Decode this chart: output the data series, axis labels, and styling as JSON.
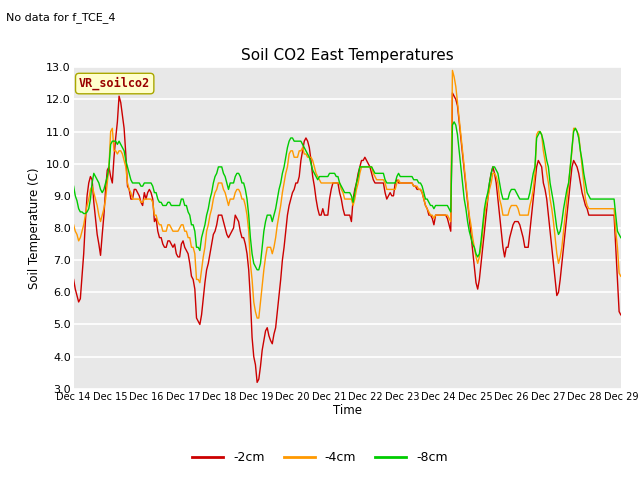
{
  "title": "Soil CO2 East Temperatures",
  "subtitle": "No data for f_TCE_4",
  "ylabel": "Soil Temperature (C)",
  "xlabel": "Time",
  "station_label": "VR_soilco2",
  "ylim": [
    3.0,
    13.0
  ],
  "yticks": [
    3.0,
    4.0,
    5.0,
    6.0,
    7.0,
    8.0,
    9.0,
    10.0,
    11.0,
    12.0,
    13.0
  ],
  "xtick_labels": [
    "Dec 14",
    "Dec 15",
    "Dec 16",
    "Dec 17",
    "Dec 18",
    "Dec 19",
    "Dec 20",
    "Dec 21",
    "Dec 22",
    "Dec 23",
    "Dec 24",
    "Dec 25",
    "Dec 26",
    "Dec 27",
    "Dec 28",
    "Dec 29"
  ],
  "colors": {
    "minus2cm": "#cc0000",
    "minus4cm": "#ff9900",
    "minus8cm": "#00cc00",
    "fig_bg": "#ffffff",
    "plot_bg": "#e8e8e8"
  },
  "legend": [
    "-2cm",
    "-4cm",
    "-8cm"
  ],
  "minus2cm": [
    6.4,
    6.1,
    5.9,
    5.7,
    5.8,
    6.5,
    7.2,
    8.2,
    9.0,
    9.4,
    9.6,
    9.5,
    8.8,
    8.3,
    7.8,
    7.5,
    7.15,
    7.8,
    8.4,
    9.2,
    9.8,
    9.9,
    9.6,
    9.4,
    10.2,
    10.8,
    11.3,
    12.1,
    11.9,
    11.5,
    11.1,
    10.3,
    9.3,
    9.2,
    8.9,
    8.9,
    9.2,
    9.2,
    9.1,
    9.0,
    8.8,
    8.7,
    9.1,
    8.9,
    9.1,
    9.2,
    9.1,
    8.9,
    8.2,
    8.3,
    7.9,
    7.7,
    7.7,
    7.5,
    7.4,
    7.4,
    7.6,
    7.6,
    7.5,
    7.4,
    7.5,
    7.2,
    7.1,
    7.1,
    7.5,
    7.6,
    7.4,
    7.3,
    7.2,
    6.9,
    6.5,
    6.4,
    6.1,
    5.2,
    5.1,
    5.0,
    5.3,
    5.8,
    6.3,
    6.7,
    6.9,
    7.2,
    7.5,
    7.8,
    7.9,
    8.1,
    8.4,
    8.4,
    8.4,
    8.2,
    8.0,
    7.8,
    7.7,
    7.8,
    7.9,
    8.0,
    8.4,
    8.3,
    8.2,
    7.9,
    7.7,
    7.7,
    7.5,
    7.2,
    6.7,
    5.8,
    4.6,
    4.0,
    3.75,
    3.2,
    3.3,
    3.7,
    4.2,
    4.5,
    4.8,
    4.9,
    4.65,
    4.5,
    4.4,
    4.7,
    4.9,
    5.4,
    5.9,
    6.4,
    7.0,
    7.4,
    7.9,
    8.4,
    8.7,
    8.9,
    9.1,
    9.2,
    9.4,
    9.4,
    9.6,
    10.1,
    10.4,
    10.7,
    10.8,
    10.7,
    10.5,
    10.1,
    9.6,
    9.3,
    8.9,
    8.6,
    8.4,
    8.4,
    8.6,
    8.4,
    8.4,
    8.4,
    8.9,
    9.2,
    9.4,
    9.4,
    9.4,
    9.4,
    9.1,
    8.9,
    8.6,
    8.4,
    8.4,
    8.4,
    8.4,
    8.2,
    8.9,
    9.2,
    9.4,
    9.7,
    9.9,
    10.1,
    10.1,
    10.2,
    10.1,
    10.0,
    9.9,
    9.7,
    9.5,
    9.4,
    9.4,
    9.4,
    9.4,
    9.4,
    9.4,
    9.1,
    8.9,
    9.0,
    9.1,
    9.0,
    9.0,
    9.4,
    9.5,
    9.4,
    9.4,
    9.4,
    9.4,
    9.4,
    9.4,
    9.4,
    9.4,
    9.4,
    9.3,
    9.3,
    9.2,
    9.2,
    9.2,
    9.1,
    8.9,
    8.7,
    8.6,
    8.4,
    8.4,
    8.3,
    8.1,
    8.4,
    8.4,
    8.4,
    8.4,
    8.4,
    8.4,
    8.4,
    8.3,
    8.1,
    7.9,
    12.2,
    12.1,
    12.0,
    11.8,
    11.3,
    10.8,
    10.3,
    9.8,
    9.3,
    8.8,
    8.3,
    7.8,
    7.3,
    6.8,
    6.3,
    6.1,
    6.4,
    6.9,
    7.4,
    7.9,
    8.4,
    8.9,
    9.4,
    9.7,
    9.9,
    9.7,
    9.4,
    8.9,
    8.4,
    7.9,
    7.4,
    7.1,
    7.4,
    7.4,
    7.7,
    7.9,
    8.1,
    8.2,
    8.2,
    8.2,
    8.1,
    7.9,
    7.7,
    7.4,
    7.4,
    7.4,
    7.9,
    8.4,
    8.9,
    9.4,
    9.9,
    10.1,
    10.0,
    9.9,
    9.4,
    9.2,
    8.9,
    8.4,
    7.9,
    7.4,
    6.9,
    6.4,
    5.9,
    6.0,
    6.4,
    6.9,
    7.4,
    7.9,
    8.4,
    8.9,
    9.4,
    9.9,
    10.1,
    10.0,
    9.9,
    9.7,
    9.4,
    9.1,
    8.9,
    8.7,
    8.6,
    8.4,
    8.4,
    8.4,
    8.4,
    8.4,
    8.4,
    8.4,
    8.4,
    8.4,
    8.4,
    8.4,
    8.4,
    8.4,
    8.4,
    8.4,
    8.4,
    7.4,
    6.4,
    5.4,
    5.3
  ],
  "minus4cm": [
    8.1,
    7.9,
    7.8,
    7.6,
    7.7,
    7.9,
    8.1,
    8.4,
    8.7,
    8.9,
    9.2,
    9.3,
    9.1,
    8.9,
    8.7,
    8.4,
    8.2,
    8.4,
    8.6,
    8.9,
    9.4,
    9.9,
    11.0,
    11.1,
    10.4,
    10.4,
    10.3,
    10.4,
    10.4,
    10.3,
    10.1,
    9.9,
    9.4,
    9.2,
    9.1,
    8.9,
    8.9,
    8.9,
    8.9,
    8.9,
    8.8,
    8.8,
    8.9,
    8.9,
    8.9,
    8.9,
    8.9,
    8.8,
    8.4,
    8.4,
    8.2,
    8.1,
    8.1,
    7.9,
    7.9,
    7.9,
    8.1,
    8.1,
    8.0,
    7.9,
    7.9,
    7.9,
    7.9,
    8.0,
    8.1,
    8.1,
    7.9,
    7.9,
    7.7,
    7.7,
    7.4,
    7.4,
    7.2,
    6.4,
    6.4,
    6.3,
    6.7,
    7.1,
    7.4,
    7.9,
    8.1,
    8.4,
    8.6,
    8.9,
    9.1,
    9.2,
    9.4,
    9.4,
    9.4,
    9.2,
    9.1,
    8.9,
    8.7,
    8.9,
    8.9,
    8.9,
    9.1,
    9.2,
    9.2,
    9.1,
    8.9,
    8.9,
    8.7,
    8.4,
    7.9,
    6.9,
    6.4,
    5.7,
    5.4,
    5.2,
    5.2,
    5.7,
    6.2,
    6.7,
    7.1,
    7.4,
    7.4,
    7.4,
    7.2,
    7.4,
    7.7,
    8.1,
    8.4,
    8.7,
    9.1,
    9.4,
    9.7,
    9.9,
    10.3,
    10.4,
    10.4,
    10.2,
    10.2,
    10.2,
    10.4,
    10.4,
    10.5,
    10.3,
    10.3,
    10.2,
    10.2,
    10.2,
    10.1,
    9.9,
    9.7,
    9.6,
    9.5,
    9.4,
    9.4,
    9.4,
    9.4,
    9.4,
    9.4,
    9.4,
    9.4,
    9.4,
    9.4,
    9.4,
    9.4,
    9.2,
    9.1,
    8.9,
    8.9,
    8.9,
    8.9,
    8.9,
    8.7,
    8.9,
    9.2,
    9.4,
    9.7,
    9.9,
    9.9,
    9.9,
    9.9,
    9.9,
    9.9,
    9.9,
    9.7,
    9.6,
    9.5,
    9.5,
    9.5,
    9.5,
    9.5,
    9.4,
    9.2,
    9.2,
    9.2,
    9.2,
    9.2,
    9.2,
    9.4,
    9.5,
    9.4,
    9.4,
    9.4,
    9.4,
    9.4,
    9.4,
    9.4,
    9.4,
    9.3,
    9.3,
    9.3,
    9.2,
    9.2,
    9.1,
    8.9,
    8.7,
    8.6,
    8.5,
    8.4,
    8.4,
    8.3,
    8.4,
    8.4,
    8.4,
    8.4,
    8.4,
    8.4,
    8.4,
    8.4,
    8.3,
    8.2,
    12.9,
    12.7,
    12.4,
    11.9,
    11.4,
    10.9,
    10.4,
    9.9,
    9.4,
    8.9,
    8.4,
    8.1,
    7.7,
    7.4,
    7.1,
    6.9,
    7.1,
    7.4,
    7.9,
    8.4,
    8.7,
    8.9,
    9.2,
    9.4,
    9.7,
    9.7,
    9.6,
    9.4,
    8.9,
    8.7,
    8.4,
    8.4,
    8.4,
    8.4,
    8.6,
    8.7,
    8.7,
    8.7,
    8.7,
    8.6,
    8.4,
    8.4,
    8.4,
    8.4,
    8.4,
    8.4,
    8.7,
    8.9,
    9.2,
    9.7,
    10.9,
    11.0,
    11.0,
    10.9,
    10.4,
    10.1,
    9.7,
    9.4,
    8.9,
    8.6,
    8.2,
    7.7,
    7.2,
    6.9,
    7.1,
    7.4,
    7.9,
    8.4,
    8.9,
    9.4,
    9.9,
    10.4,
    11.1,
    11.1,
    11.0,
    10.9,
    10.4,
    9.9,
    9.4,
    8.9,
    8.7,
    8.6,
    8.6,
    8.6,
    8.6,
    8.6,
    8.6,
    8.6,
    8.6,
    8.6,
    8.6,
    8.6,
    8.6,
    8.6,
    8.6,
    8.6,
    8.6,
    7.9,
    7.4,
    6.6,
    6.5
  ],
  "minus8cm": [
    9.3,
    9.0,
    8.85,
    8.6,
    8.5,
    8.5,
    8.45,
    8.45,
    8.5,
    8.6,
    8.9,
    9.4,
    9.7,
    9.6,
    9.5,
    9.4,
    9.2,
    9.1,
    9.2,
    9.4,
    9.6,
    9.9,
    10.6,
    10.7,
    10.7,
    10.7,
    10.6,
    10.7,
    10.6,
    10.5,
    10.4,
    10.1,
    9.9,
    9.7,
    9.5,
    9.4,
    9.4,
    9.4,
    9.4,
    9.4,
    9.3,
    9.3,
    9.4,
    9.4,
    9.4,
    9.4,
    9.4,
    9.3,
    9.1,
    9.1,
    8.9,
    8.8,
    8.8,
    8.7,
    8.7,
    8.7,
    8.8,
    8.8,
    8.7,
    8.7,
    8.7,
    8.7,
    8.7,
    8.7,
    8.9,
    8.9,
    8.7,
    8.7,
    8.5,
    8.4,
    8.1,
    8.1,
    7.9,
    7.4,
    7.4,
    7.3,
    7.7,
    7.9,
    8.1,
    8.4,
    8.6,
    8.9,
    9.1,
    9.4,
    9.6,
    9.7,
    9.9,
    9.9,
    9.9,
    9.7,
    9.6,
    9.4,
    9.2,
    9.4,
    9.4,
    9.4,
    9.6,
    9.7,
    9.7,
    9.6,
    9.4,
    9.4,
    9.2,
    8.9,
    8.4,
    7.7,
    7.2,
    6.9,
    6.8,
    6.7,
    6.7,
    6.9,
    7.4,
    7.9,
    8.2,
    8.4,
    8.4,
    8.4,
    8.2,
    8.4,
    8.6,
    8.9,
    9.2,
    9.4,
    9.7,
    9.9,
    10.2,
    10.5,
    10.7,
    10.8,
    10.8,
    10.7,
    10.7,
    10.7,
    10.7,
    10.7,
    10.6,
    10.5,
    10.4,
    10.3,
    10.2,
    10.0,
    9.8,
    9.7,
    9.6,
    9.5,
    9.6,
    9.6,
    9.6,
    9.6,
    9.6,
    9.6,
    9.7,
    9.7,
    9.7,
    9.7,
    9.6,
    9.6,
    9.4,
    9.3,
    9.2,
    9.1,
    9.1,
    9.1,
    9.1,
    9.0,
    8.8,
    9.1,
    9.4,
    9.6,
    9.9,
    9.9,
    9.9,
    9.9,
    9.9,
    9.9,
    9.9,
    9.9,
    9.8,
    9.7,
    9.7,
    9.7,
    9.7,
    9.7,
    9.7,
    9.5,
    9.4,
    9.4,
    9.4,
    9.4,
    9.4,
    9.4,
    9.6,
    9.7,
    9.6,
    9.6,
    9.6,
    9.6,
    9.6,
    9.6,
    9.6,
    9.6,
    9.5,
    9.5,
    9.5,
    9.4,
    9.4,
    9.3,
    9.1,
    8.9,
    8.9,
    8.8,
    8.7,
    8.7,
    8.6,
    8.7,
    8.7,
    8.7,
    8.7,
    8.7,
    8.7,
    8.7,
    8.7,
    8.6,
    8.5,
    11.2,
    11.3,
    11.2,
    10.9,
    10.4,
    9.9,
    9.4,
    8.9,
    8.6,
    8.2,
    7.9,
    7.7,
    7.5,
    7.4,
    7.2,
    7.1,
    7.2,
    7.6,
    8.1,
    8.6,
    8.9,
    9.1,
    9.4,
    9.7,
    9.9,
    9.9,
    9.8,
    9.7,
    9.4,
    9.1,
    8.9,
    8.9,
    8.9,
    8.9,
    9.1,
    9.2,
    9.2,
    9.2,
    9.1,
    9.0,
    8.9,
    8.9,
    8.9,
    8.9,
    8.9,
    8.9,
    9.1,
    9.4,
    9.7,
    9.9,
    10.8,
    10.9,
    11.0,
    10.9,
    10.7,
    10.4,
    10.1,
    9.9,
    9.4,
    9.1,
    8.8,
    8.4,
    8.0,
    7.8,
    7.9,
    8.2,
    8.6,
    8.9,
    9.2,
    9.4,
    9.9,
    10.5,
    11.0,
    11.1,
    11.0,
    10.8,
    10.4,
    10.1,
    9.7,
    9.4,
    9.1,
    9.0,
    8.9,
    8.9,
    8.9,
    8.9,
    8.9,
    8.9,
    8.9,
    8.9,
    8.9,
    8.9,
    8.9,
    8.9,
    8.9,
    8.9,
    8.9,
    8.4,
    7.9,
    7.8,
    7.7
  ]
}
